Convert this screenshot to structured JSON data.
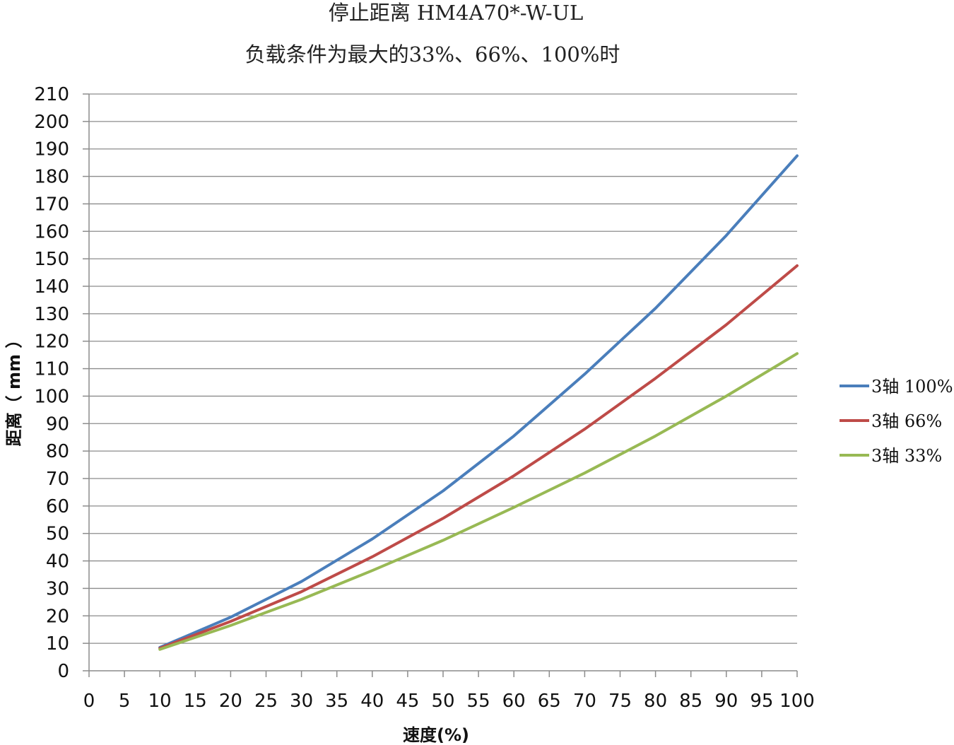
{
  "chart_data": {
    "type": "line",
    "title": "停止距离 HM4A70*-W-UL",
    "subtitle": "负载条件为最大的33%、66%、100%时",
    "xlabel": "速度(%)",
    "ylabel": "距离（ mm ）",
    "xlim": [
      0,
      100
    ],
    "ylim": [
      0,
      210
    ],
    "xticks": [
      0,
      5,
      10,
      15,
      20,
      25,
      30,
      35,
      40,
      45,
      50,
      55,
      60,
      65,
      70,
      75,
      80,
      85,
      90,
      95,
      100
    ],
    "yticks": [
      0,
      10,
      20,
      30,
      40,
      50,
      60,
      70,
      80,
      90,
      100,
      110,
      120,
      130,
      140,
      150,
      160,
      170,
      180,
      190,
      200,
      210
    ],
    "grid": "horizontal",
    "legend_position": "right",
    "x": [
      10,
      20,
      30,
      40,
      50,
      60,
      70,
      80,
      90,
      100
    ],
    "series": [
      {
        "name": "3轴 100%",
        "color": "#4a7ebb",
        "values": [
          8.5,
          19.5,
          32.5,
          48,
          65.5,
          85.5,
          108,
          132,
          158.5,
          187.5
        ]
      },
      {
        "name": "3轴 66%",
        "color": "#be4b48",
        "values": [
          8.2,
          18,
          28.8,
          41.5,
          55.5,
          71,
          88,
          106.5,
          126,
          147.5
        ]
      },
      {
        "name": "3轴 33%",
        "color": "#98b954",
        "values": [
          7.8,
          16.5,
          26,
          36.5,
          47.5,
          59.5,
          72,
          85.5,
          100,
          115.5
        ]
      }
    ]
  }
}
